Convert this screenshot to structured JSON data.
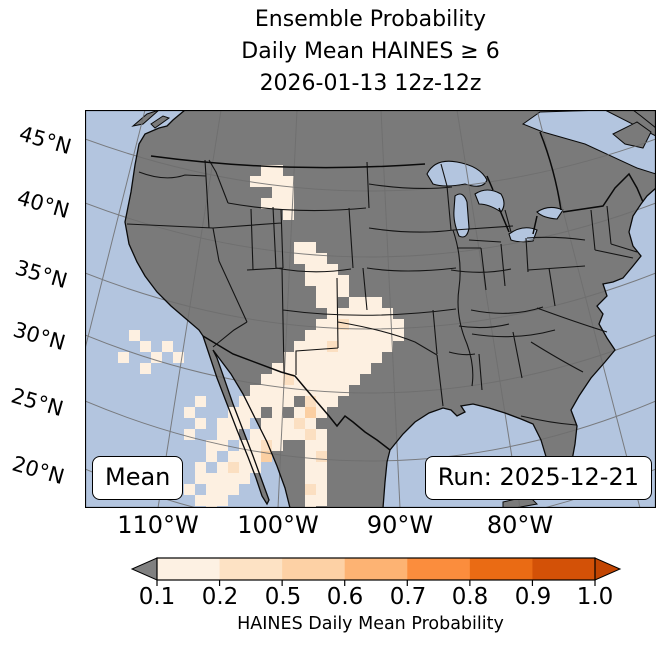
{
  "title": {
    "line1": "Ensemble Probability",
    "line2": "Daily Mean HAINES ≥ 6",
    "line3": "2026-01-13 12z-12z"
  },
  "map": {
    "corner_labels": {
      "mean": "Mean",
      "run": "Run: 2025-12-21"
    },
    "lat_labels": [
      "45°N",
      "40°N",
      "35°N",
      "30°N",
      "25°N",
      "20°N"
    ],
    "lon_labels": [
      "110°W",
      "100°W",
      "90°W",
      "80°W"
    ],
    "colors": {
      "water": "#b3c5df",
      "land": "#7a7a7a",
      "grid": "#6e6e6e",
      "coast": "#0a0a0a"
    }
  },
  "colorbar": {
    "title": "HAINES Daily Mean Probability",
    "tick_labels": [
      "0.1",
      "0.2",
      "0.5",
      "0.6",
      "0.7",
      "0.8",
      "0.9",
      "1.0"
    ],
    "segment_colors": [
      "#fdf1e3",
      "#fde2c4",
      "#fdd1a5",
      "#fdb373",
      "#fb8d3d",
      "#ea6b14",
      "#d35107"
    ],
    "under_color": "#808080",
    "over_color": "#c24502"
  },
  "chart_data": {
    "type": "heatmap",
    "title": "Ensemble probability of daily mean Haines index ≥ 6, valid 2026-01-13 12z-12z, model run 2025-12-21, ensemble mean",
    "field": "HAINES Daily Mean Probability",
    "probability_levels": {
      "1": "0.1-0.2",
      "2": "0.2-0.5",
      "3": "0.5-0.6"
    },
    "level_colors": {
      "1": "#fdf0e1",
      "2": "#fbdfc1",
      "3": "#fbcfa2"
    },
    "cell_size_px": 11,
    "extent": {
      "lon": [
        "115°W",
        "65°W"
      ],
      "lat": [
        "18°N",
        "49°N"
      ]
    },
    "cells": [
      [
        16,
        5
      ],
      [
        17,
        5
      ],
      [
        15,
        6
      ],
      [
        16,
        6
      ],
      [
        17,
        6
      ],
      [
        18,
        6
      ],
      [
        17,
        7
      ],
      [
        18,
        7
      ],
      [
        16,
        8
      ],
      [
        17,
        8
      ],
      [
        18,
        8
      ],
      [
        18,
        9
      ],
      [
        19,
        12
      ],
      [
        20,
        12
      ],
      [
        19,
        13
      ],
      [
        20,
        13
      ],
      [
        21,
        13
      ],
      [
        20,
        14
      ],
      [
        21,
        14
      ],
      [
        22,
        14
      ],
      [
        20,
        15
      ],
      [
        21,
        15
      ],
      [
        22,
        15
      ],
      [
        23,
        15
      ],
      [
        21,
        16
      ],
      [
        22,
        16
      ],
      [
        23,
        16
      ],
      [
        21,
        17
      ],
      [
        22,
        17
      ],
      [
        24,
        17
      ],
      [
        25,
        17
      ],
      [
        26,
        17
      ],
      [
        22,
        18
      ],
      [
        23,
        18
      ],
      [
        24,
        18
      ],
      [
        25,
        18
      ],
      [
        26,
        18
      ],
      [
        27,
        18
      ],
      [
        21,
        19
      ],
      [
        22,
        19
      ],
      [
        23,
        19,
        2
      ],
      [
        24,
        19
      ],
      [
        25,
        19
      ],
      [
        26,
        19
      ],
      [
        27,
        19
      ],
      [
        28,
        19
      ],
      [
        4,
        20
      ],
      [
        20,
        20
      ],
      [
        21,
        20
      ],
      [
        22,
        20
      ],
      [
        23,
        20
      ],
      [
        24,
        20
      ],
      [
        25,
        20
      ],
      [
        26,
        20
      ],
      [
        27,
        20
      ],
      [
        28,
        20
      ],
      [
        5,
        21
      ],
      [
        7,
        21
      ],
      [
        19,
        21
      ],
      [
        20,
        21
      ],
      [
        21,
        21
      ],
      [
        22,
        21,
        2
      ],
      [
        23,
        21
      ],
      [
        24,
        21
      ],
      [
        25,
        21
      ],
      [
        26,
        21
      ],
      [
        27,
        21
      ],
      [
        3,
        22
      ],
      [
        6,
        22
      ],
      [
        8,
        22
      ],
      [
        18,
        22
      ],
      [
        19,
        22
      ],
      [
        20,
        22
      ],
      [
        21,
        22
      ],
      [
        22,
        22
      ],
      [
        23,
        22
      ],
      [
        24,
        22
      ],
      [
        25,
        22
      ],
      [
        26,
        22
      ],
      [
        5,
        23
      ],
      [
        17,
        23
      ],
      [
        18,
        23
      ],
      [
        19,
        23
      ],
      [
        20,
        23
      ],
      [
        21,
        23
      ],
      [
        22,
        23
      ],
      [
        23,
        23
      ],
      [
        24,
        23
      ],
      [
        25,
        23
      ],
      [
        16,
        24
      ],
      [
        17,
        24
      ],
      [
        18,
        24,
        2
      ],
      [
        19,
        24
      ],
      [
        20,
        24
      ],
      [
        21,
        24
      ],
      [
        22,
        24
      ],
      [
        23,
        24
      ],
      [
        24,
        24
      ],
      [
        15,
        25
      ],
      [
        16,
        25
      ],
      [
        17,
        25
      ],
      [
        18,
        25
      ],
      [
        19,
        25
      ],
      [
        20,
        25
      ],
      [
        21,
        25
      ],
      [
        22,
        25
      ],
      [
        23,
        25
      ],
      [
        10,
        26
      ],
      [
        14,
        26
      ],
      [
        15,
        26
      ],
      [
        16,
        26
      ],
      [
        17,
        26
      ],
      [
        18,
        26
      ],
      [
        20,
        26,
        2
      ],
      [
        21,
        26
      ],
      [
        22,
        26
      ],
      [
        9,
        27
      ],
      [
        13,
        27
      ],
      [
        14,
        27
      ],
      [
        15,
        27
      ],
      [
        17,
        27
      ],
      [
        19,
        27
      ],
      [
        20,
        27,
        3
      ],
      [
        21,
        27
      ],
      [
        10,
        28
      ],
      [
        12,
        28
      ],
      [
        13,
        28
      ],
      [
        14,
        28
      ],
      [
        16,
        28
      ],
      [
        17,
        28
      ],
      [
        18,
        28
      ],
      [
        19,
        28,
        2
      ],
      [
        20,
        28
      ],
      [
        9,
        29
      ],
      [
        12,
        29
      ],
      [
        13,
        29
      ],
      [
        15,
        29
      ],
      [
        16,
        29
      ],
      [
        17,
        29
      ],
      [
        18,
        29
      ],
      [
        19,
        29
      ],
      [
        20,
        29,
        2
      ],
      [
        21,
        29
      ],
      [
        11,
        30
      ],
      [
        12,
        30
      ],
      [
        14,
        30
      ],
      [
        15,
        30
      ],
      [
        16,
        30,
        2
      ],
      [
        17,
        30
      ],
      [
        20,
        30
      ],
      [
        21,
        30
      ],
      [
        11,
        31
      ],
      [
        13,
        31
      ],
      [
        14,
        31
      ],
      [
        15,
        31
      ],
      [
        16,
        31,
        3
      ],
      [
        20,
        31
      ],
      [
        21,
        31,
        2
      ],
      [
        10,
        32
      ],
      [
        12,
        32
      ],
      [
        13,
        32,
        2
      ],
      [
        14,
        32
      ],
      [
        15,
        32
      ],
      [
        20,
        32
      ],
      [
        21,
        32
      ],
      [
        10,
        33
      ],
      [
        11,
        33
      ],
      [
        12,
        33
      ],
      [
        13,
        33
      ],
      [
        14,
        33
      ],
      [
        20,
        33
      ],
      [
        21,
        33
      ],
      [
        9,
        34
      ],
      [
        11,
        34
      ],
      [
        12,
        34
      ],
      [
        13,
        34
      ],
      [
        20,
        34,
        2
      ],
      [
        21,
        34
      ],
      [
        10,
        35
      ],
      [
        11,
        35
      ],
      [
        12,
        35
      ],
      [
        20,
        35
      ],
      [
        21,
        35
      ],
      [
        11,
        36
      ],
      [
        20,
        36
      ]
    ]
  }
}
